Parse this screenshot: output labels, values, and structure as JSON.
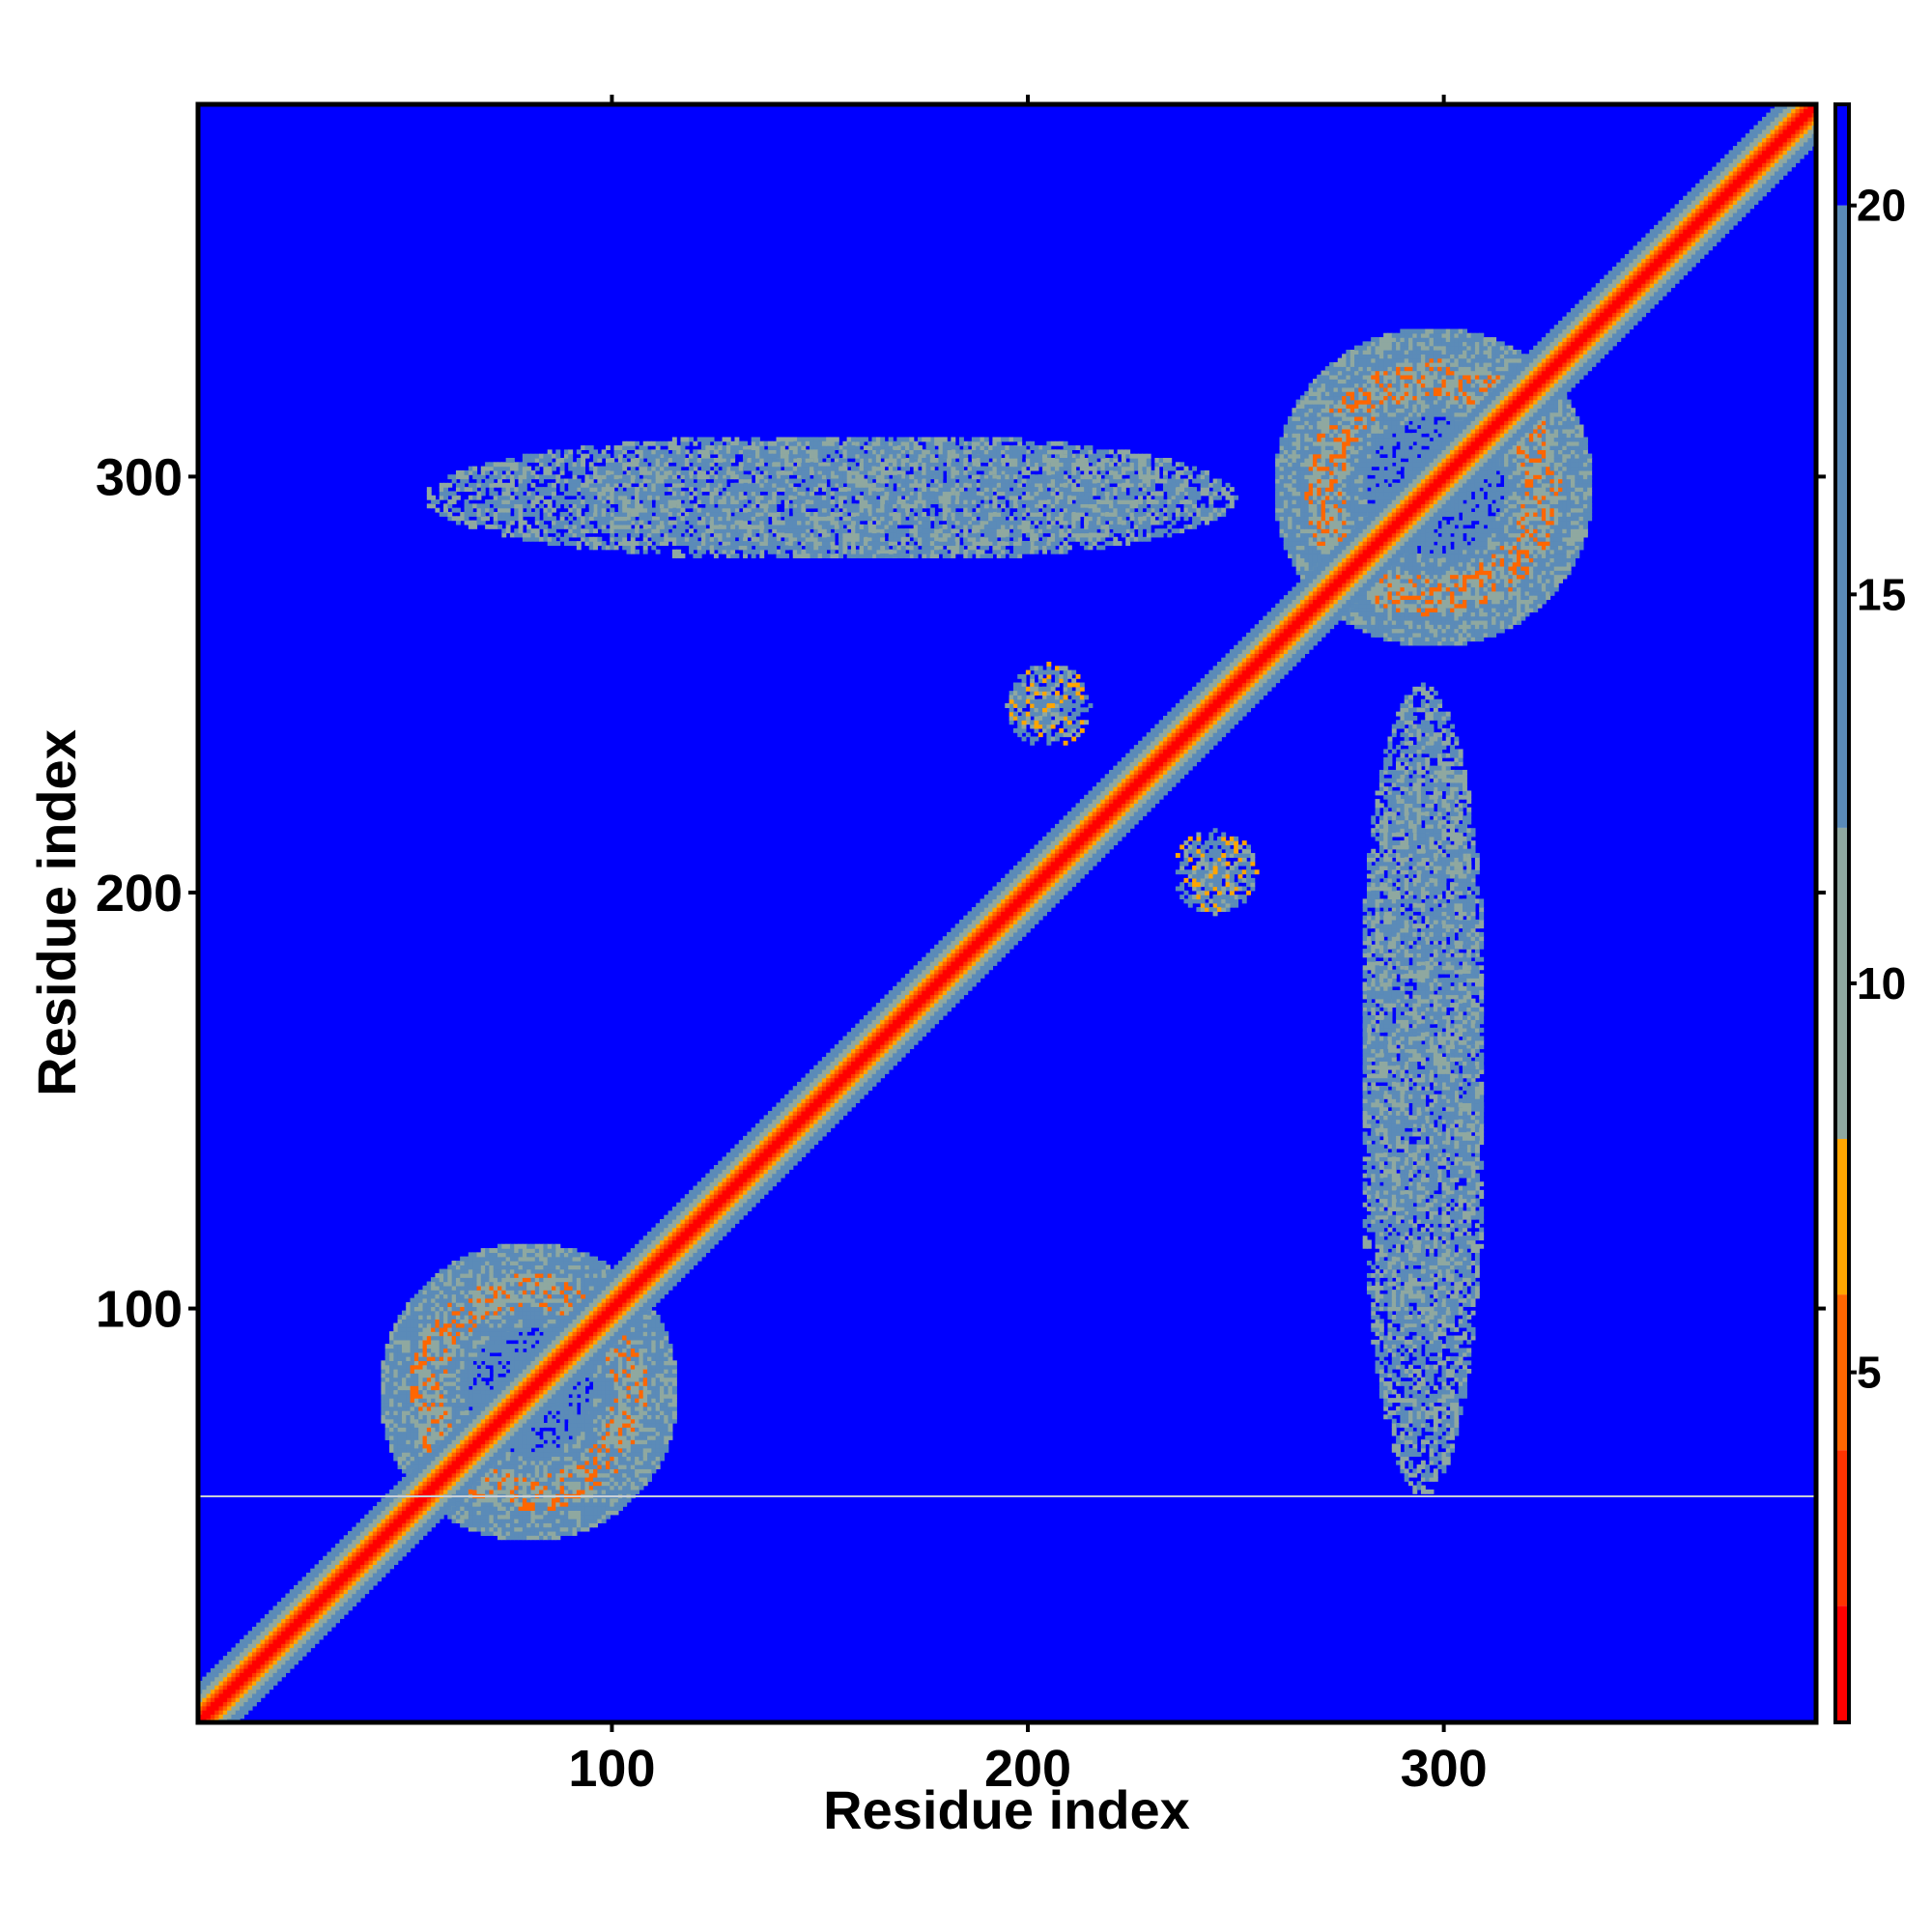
{
  "chart_data": {
    "type": "heatmap",
    "title": "",
    "xlabel": "Residue index",
    "ylabel": "Residue index",
    "xlim": [
      1,
      389
    ],
    "ylim": [
      1,
      389
    ],
    "x_ticks": [
      100,
      200,
      300
    ],
    "y_ticks": [
      100,
      200,
      300
    ],
    "colorbar": {
      "range": [
        0.5,
        21.3
      ],
      "ticks": [
        5,
        10,
        15,
        20
      ],
      "colors": {
        "le_2": "#ff0000",
        "le_4": "#ff3300",
        "le_6": "#ff6600",
        "le_8": "#ffa500",
        "le_12": "#8fa8a0",
        "le_20": "#5b8bb8",
        "gt_20": "#0000ff"
      }
    },
    "description_values": {
      "diagonal_distance": 0,
      "background_distance": 21
    },
    "contact_regions": [
      {
        "x": [
          45,
          115
        ],
        "y": [
          45,
          115
        ],
        "min_distance": 6
      },
      {
        "x": [
          260,
          335
        ],
        "y": [
          260,
          335
        ],
        "min_distance": 6
      },
      {
        "x": [
          195,
          215
        ],
        "y": [
          235,
          255
        ],
        "min_distance": 8
      },
      {
        "x": [
          240,
          250
        ],
        "y": [
          195,
          210
        ],
        "min_distance": 8
      },
      {
        "x": [
          55,
          240
        ],
        "y": [
          280,
          310
        ],
        "min_distance": 12
      },
      {
        "x": [
          280,
          310
        ],
        "y": [
          90,
          250
        ],
        "min_distance": 12
      }
    ]
  }
}
